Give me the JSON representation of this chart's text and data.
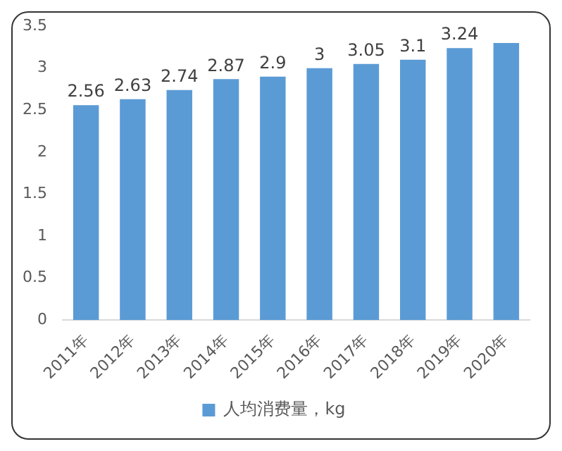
{
  "chart_data": {
    "type": "bar",
    "categories": [
      "2011年",
      "2012年",
      "2013年",
      "2014年",
      "2015年",
      "2016年",
      "2017年",
      "2018年",
      "2019年",
      "2020年"
    ],
    "series": [
      {
        "name": "人均消费量，kg",
        "color": "#5b9bd5",
        "values": [
          2.56,
          2.63,
          2.74,
          2.87,
          2.9,
          3,
          3.05,
          3.1,
          3.24,
          3.3
        ],
        "value_labels": [
          "2.56",
          "2.63",
          "2.74",
          "2.87",
          "2.9",
          "3",
          "3.05",
          "3.1",
          "3.24",
          null
        ]
      }
    ],
    "ylim": [
      0,
      3.5
    ],
    "yticks": [
      0,
      0.5,
      1,
      1.5,
      2,
      2.5,
      3,
      3.5
    ],
    "grid": false,
    "legend": "bottom"
  }
}
